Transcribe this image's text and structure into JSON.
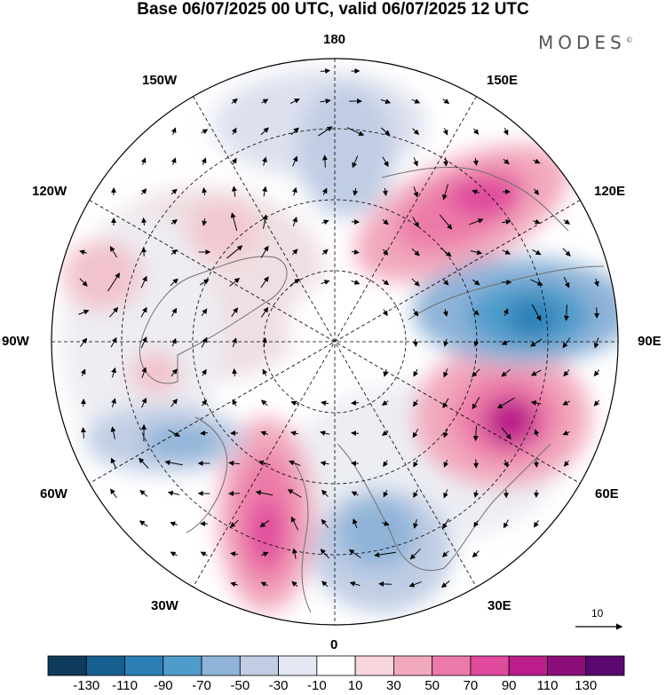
{
  "title": "Base 06/07/2025 00 UTC, valid 06/07/2025 12 UTC",
  "brand": "MODES",
  "brand_mark": "©",
  "longitude_labels": {
    "top": "180",
    "bottom": "0",
    "left": "90W",
    "right": "90E",
    "upper_left_1": "150W",
    "upper_left_2": "120W",
    "lower_left_1": "60W",
    "lower_left_2": "30W",
    "upper_right_1": "150E",
    "upper_right_2": "120E",
    "lower_right_1": "60E",
    "lower_right_2": "30E"
  },
  "vector_reference": "10",
  "colorbar": {
    "labels": [
      "-130",
      "-110",
      "-90",
      "-70",
      "-50",
      "-30",
      "-10",
      "10",
      "30",
      "50",
      "70",
      "90",
      "110",
      "130"
    ],
    "colors": [
      "#0f3a5c",
      "#165f8e",
      "#2b7fb5",
      "#4f9ccb",
      "#8fb4d8",
      "#c0cde4",
      "#e4e6f2",
      "#ffffff",
      "#f7d6dc",
      "#f2a9bd",
      "#ec7aa8",
      "#df4a9d",
      "#bb1e8a",
      "#8b0e7a",
      "#5a0770"
    ]
  },
  "colors": {
    "land_outline": "#707070",
    "grid": "#000000",
    "arrow": "#000000"
  }
}
